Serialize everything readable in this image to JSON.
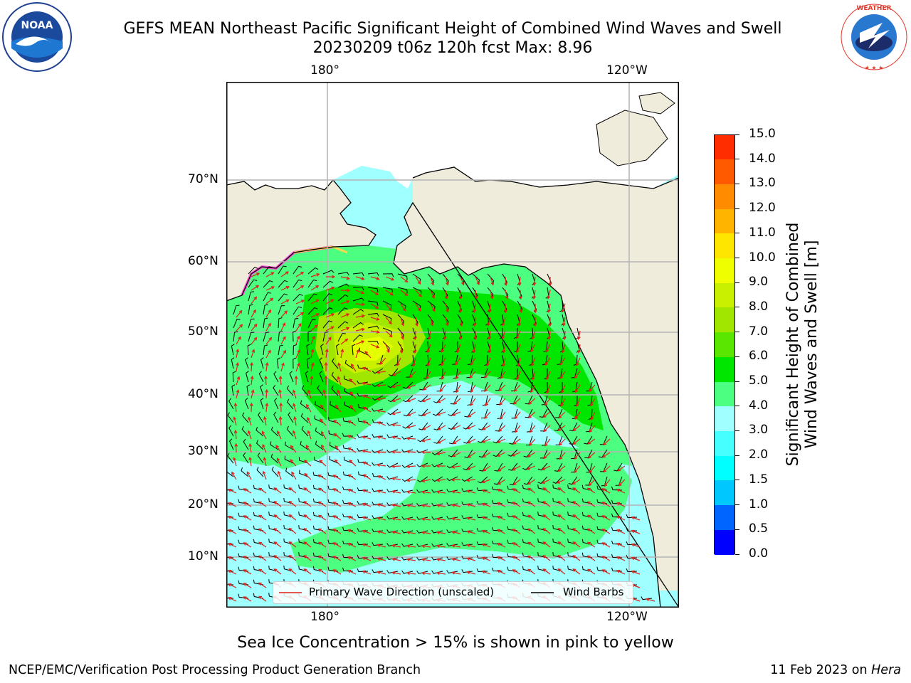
{
  "header": {
    "title_line1": "GEFS MEAN Northeast Pacific Significant Height of Combined Wind Waves and Swell",
    "title_line2": "20230209 t06z 120h fcst   Max: 8.96"
  },
  "logos": {
    "noaa_text": "NOAA",
    "noaa_ring_text": "NATIONAL OCEANIC AND ATMOSPHERIC ADMINISTRATION · U.S. DEPARTMENT OF COMMERCE",
    "nws_ring_text": "NATIONAL WEATHER SERVICE"
  },
  "map": {
    "lon_labels_top": [
      "180°",
      "120°W"
    ],
    "lon_labels_bottom": [
      "180°",
      "120°W"
    ],
    "lat_labels": [
      "70°N",
      "60°N",
      "50°N",
      "40°N",
      "30°N",
      "20°N",
      "10°N"
    ],
    "legend": {
      "wave_label": "Primary Wave Direction (unscaled)",
      "wind_label": "Wind Barbs"
    },
    "colors": {
      "land": "#efecdc",
      "wave_arrow": "#e0201a",
      "wind_barb": "#000000"
    }
  },
  "colorbar": {
    "label": "Significant Height of Combined Wind Waves and Swell [m]",
    "label_line1": "Significant Height of Combined",
    "label_line2": "Wind Waves and Swell [m]",
    "ticks": [
      "0.0",
      "0.5",
      "1.0",
      "1.5",
      "2.0",
      "3.0",
      "4.0",
      "5.0",
      "6.0",
      "7.0",
      "8.0",
      "9.0",
      "10.0",
      "11.0",
      "12.0",
      "13.0",
      "14.0",
      "15.0"
    ],
    "colors": [
      "#0000ff",
      "#0064ff",
      "#00c8ff",
      "#00ffff",
      "#46ffff",
      "#a0ffff",
      "#4dff80",
      "#00e600",
      "#5ae600",
      "#a0e600",
      "#c8f000",
      "#f0ff00",
      "#ffe600",
      "#ffb400",
      "#ff8c00",
      "#ff5a00",
      "#ff2d00",
      "#ff0000"
    ]
  },
  "captions": {
    "ice_note": "Sea Ice Concentration > 15% is shown in pink to yellow",
    "credit": "NCEP/EMC/Verification Post Processing Product Generation Branch",
    "date": "11 Feb 2023 on ",
    "host": "Hera"
  }
}
